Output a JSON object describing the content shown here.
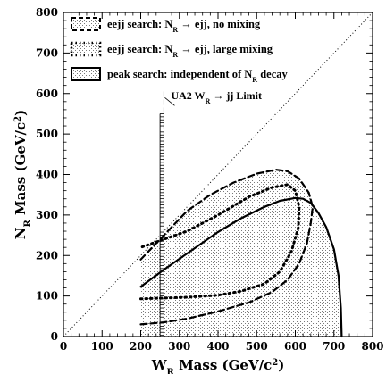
{
  "chart_data": {
    "type": "area",
    "xlabel": "W_R Mass (GeV/c^2)",
    "ylabel": "N_R Mass (GeV/c^2)",
    "xlim": [
      0,
      800
    ],
    "ylim": [
      0,
      800
    ],
    "xticks": [
      "0",
      "100",
      "200",
      "300",
      "400",
      "500",
      "600",
      "700",
      "800"
    ],
    "yticks": [
      "0",
      "100",
      "200",
      "300",
      "400",
      "500",
      "600",
      "700",
      "800"
    ],
    "legend": {
      "placement": "top-left",
      "entries": [
        {
          "parts": [
            "eejj search: N",
            "R",
            " → ejj, no mixing"
          ],
          "style": "dashed"
        },
        {
          "parts": [
            "eejj search: N",
            "R",
            " → ejj, large mixing"
          ],
          "style": "dotted"
        },
        {
          "parts": [
            "peak search: independent of N",
            "R",
            " decay"
          ],
          "style": "solid"
        }
      ]
    },
    "annotation": {
      "parts": [
        "UA2 W",
        "R",
        " → jj Limit"
      ],
      "x": 260
    },
    "reference_line": {
      "label": "N_R = W_R",
      "points": [
        [
          0,
          0
        ],
        [
          800,
          800
        ]
      ],
      "style": "dotted"
    },
    "series": [
      {
        "style": "solid",
        "points": [
          [
            200,
            123
          ],
          [
            260,
            165
          ],
          [
            320,
            205
          ],
          [
            400,
            258
          ],
          [
            460,
            292
          ],
          [
            520,
            320
          ],
          [
            560,
            335
          ],
          [
            600,
            342
          ],
          [
            620,
            340
          ],
          [
            640,
            330
          ],
          [
            660,
            305
          ],
          [
            680,
            270
          ],
          [
            700,
            215
          ],
          [
            712,
            150
          ],
          [
            718,
            70
          ],
          [
            720,
            0
          ]
        ]
      },
      {
        "style": "dashed",
        "points": [
          [
            200,
            30
          ],
          [
            260,
            35
          ],
          [
            320,
            44
          ],
          [
            400,
            62
          ],
          [
            480,
            84
          ],
          [
            540,
            110
          ],
          [
            580,
            140
          ],
          [
            610,
            180
          ],
          [
            630,
            230
          ],
          [
            640,
            280
          ],
          [
            645,
            320
          ],
          [
            635,
            355
          ],
          [
            610,
            390
          ],
          [
            580,
            408
          ],
          [
            550,
            412
          ],
          [
            500,
            402
          ],
          [
            440,
            380
          ],
          [
            380,
            350
          ],
          [
            320,
            310
          ],
          [
            260,
            250
          ],
          [
            200,
            190
          ]
        ]
      },
      {
        "style": "dotted",
        "points": [
          [
            200,
            93
          ],
          [
            260,
            95
          ],
          [
            320,
            97
          ],
          [
            400,
            102
          ],
          [
            460,
            112
          ],
          [
            520,
            130
          ],
          [
            560,
            160
          ],
          [
            590,
            210
          ],
          [
            608,
            270
          ],
          [
            610,
            320
          ],
          [
            600,
            360
          ],
          [
            580,
            375
          ],
          [
            540,
            368
          ],
          [
            480,
            345
          ],
          [
            400,
            300
          ],
          [
            320,
            260
          ],
          [
            260,
            240
          ],
          [
            200,
            220
          ]
        ]
      }
    ]
  }
}
